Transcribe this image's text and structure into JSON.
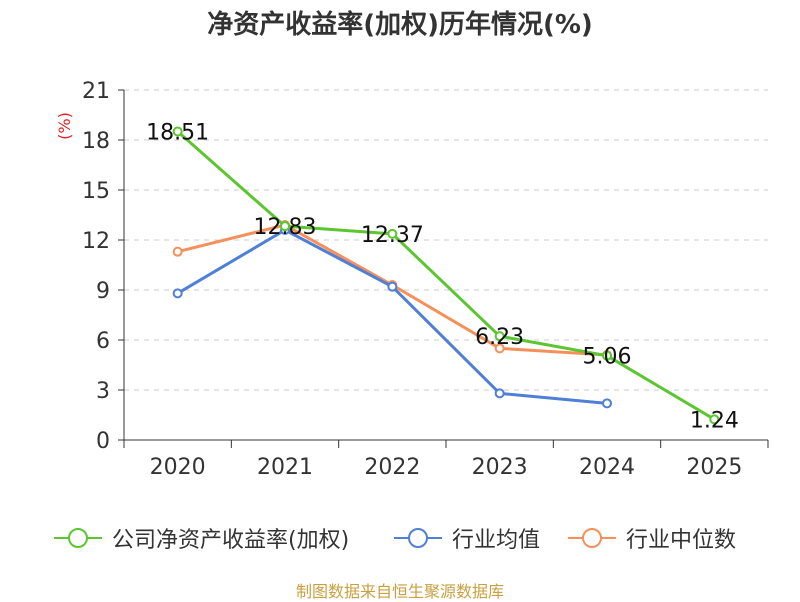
{
  "chart_data": {
    "type": "line",
    "title": "净资产收益率(加权)历年情况(%)",
    "ylabel": "(%)",
    "xlabel": "",
    "categories": [
      "2020",
      "2021",
      "2022",
      "2023",
      "2024",
      "2025"
    ],
    "ylim": [
      0,
      21
    ],
    "yticks": [
      0,
      3,
      6,
      9,
      12,
      15,
      18,
      21
    ],
    "grid": true,
    "legend_position": "bottom",
    "series": [
      {
        "name": "公司净资产收益率(加权)",
        "color": "#5cc630",
        "values": [
          18.51,
          12.83,
          12.37,
          6.23,
          5.06,
          1.24
        ],
        "labels": [
          "18.51",
          "12.83",
          "12.37",
          "6.23",
          "5.06",
          "1.24"
        ]
      },
      {
        "name": "行业均值",
        "color": "#4f7fd6",
        "values": [
          8.8,
          12.6,
          9.2,
          2.8,
          2.2,
          null
        ]
      },
      {
        "name": "行业中位数",
        "color": "#f5905a",
        "values": [
          11.3,
          12.9,
          9.3,
          5.5,
          5.1,
          null
        ]
      }
    ]
  },
  "source_note": "制图数据来自恒生聚源数据库"
}
